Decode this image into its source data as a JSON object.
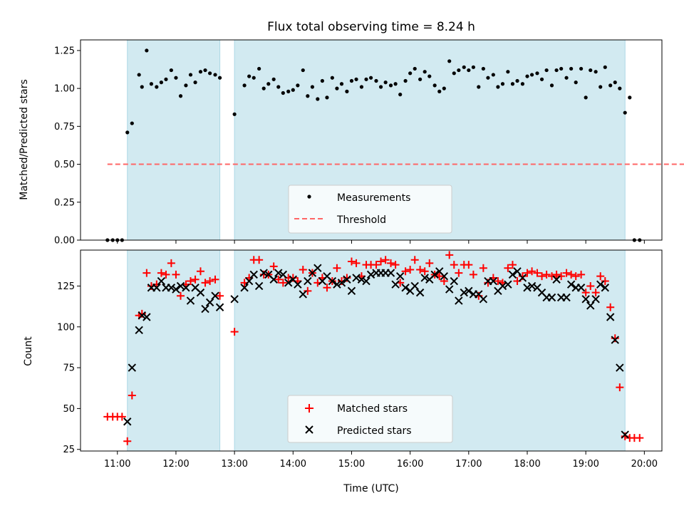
{
  "title": "Flux total observing time = 8.24 h",
  "colors": {
    "shade": "#add8e6",
    "measure": "#000000",
    "threshold": "#ff6666",
    "matched": "#ff0000",
    "predicted": "#000000"
  },
  "chart_data": [
    {
      "type": "scatter",
      "ylabel": "Matched/Predicted stars",
      "ylim": [
        0,
        1.32
      ],
      "yticks": [
        0.0,
        0.25,
        0.5,
        0.75,
        1.0,
        1.25
      ],
      "yticklabels": [
        "0.00",
        "0.25",
        "0.50",
        "0.75",
        "1.00",
        "1.25"
      ],
      "shaded_intervals": [
        [
          11.17,
          12.75
        ],
        [
          13.0,
          19.67
        ]
      ],
      "threshold": {
        "name": "Threshold",
        "value": 0.5,
        "x_range": [
          10.83,
          20.83
        ]
      },
      "legend": {
        "placement": "lower center",
        "entries": [
          "Measurements",
          "Threshold"
        ]
      },
      "series": [
        {
          "name": "Measurements",
          "x": [
            10.83,
            10.92,
            11.0,
            11.08,
            11.17,
            11.25,
            11.37,
            11.42,
            11.5,
            11.58,
            11.67,
            11.75,
            11.83,
            11.92,
            12.0,
            12.08,
            12.17,
            12.25,
            12.33,
            12.42,
            12.5,
            12.58,
            12.67,
            12.75,
            13.0,
            13.17,
            13.25,
            13.33,
            13.42,
            13.5,
            13.58,
            13.67,
            13.75,
            13.83,
            13.92,
            14.0,
            14.08,
            14.17,
            14.25,
            14.33,
            14.42,
            14.5,
            14.58,
            14.67,
            14.75,
            14.83,
            14.92,
            15.0,
            15.08,
            15.17,
            15.25,
            15.33,
            15.42,
            15.5,
            15.58,
            15.67,
            15.75,
            15.83,
            15.92,
            16.0,
            16.08,
            16.17,
            16.25,
            16.33,
            16.42,
            16.5,
            16.58,
            16.67,
            16.75,
            16.83,
            16.92,
            17.0,
            17.08,
            17.17,
            17.25,
            17.33,
            17.42,
            17.5,
            17.58,
            17.67,
            17.75,
            17.83,
            17.92,
            18.0,
            18.08,
            18.17,
            18.25,
            18.33,
            18.42,
            18.5,
            18.58,
            18.67,
            18.75,
            18.83,
            18.92,
            19.0,
            19.08,
            19.17,
            19.25,
            19.33,
            19.42,
            19.5,
            19.58,
            19.67,
            19.75,
            19.83,
            19.92
          ],
          "y": [
            0,
            0,
            0,
            0,
            0.71,
            0.77,
            1.09,
            1.01,
            1.25,
            1.03,
            1.01,
            1.04,
            1.06,
            1.12,
            1.07,
            0.95,
            1.02,
            1.09,
            1.04,
            1.11,
            1.12,
            1.1,
            1.09,
            1.07,
            0.83,
            1.02,
            1.08,
            1.07,
            1.13,
            1.0,
            1.03,
            1.06,
            1.01,
            0.97,
            0.98,
            0.99,
            1.02,
            1.12,
            0.95,
            1.01,
            0.93,
            1.05,
            0.94,
            1.07,
            1.0,
            1.03,
            0.98,
            1.05,
            1.06,
            1.01,
            1.06,
            1.07,
            1.05,
            1.01,
            1.04,
            1.02,
            1.03,
            0.96,
            1.05,
            1.1,
            1.13,
            1.06,
            1.11,
            1.08,
            1.02,
            0.98,
            1.0,
            1.18,
            1.1,
            1.12,
            1.14,
            1.12,
            1.14,
            1.01,
            1.13,
            1.07,
            1.09,
            1.01,
            1.03,
            1.11,
            1.03,
            1.05,
            1.03,
            1.08,
            1.09,
            1.1,
            1.06,
            1.12,
            1.02,
            1.12,
            1.13,
            1.07,
            1.13,
            1.04,
            1.13,
            0.94,
            1.12,
            1.11,
            1.01,
            1.14,
            1.02,
            1.04,
            1.0,
            0.84,
            0.94,
            0,
            0
          ]
        }
      ]
    },
    {
      "type": "scatter",
      "xlabel": "Time (UTC)",
      "ylabel": "Count",
      "xlim": [
        10.37,
        20.3
      ],
      "ylim": [
        24,
        147
      ],
      "yticks": [
        25,
        50,
        75,
        100,
        125
      ],
      "yticklabels": [
        "25",
        "50",
        "75",
        "100",
        "125"
      ],
      "xticks": [
        11,
        12,
        13,
        14,
        15,
        16,
        17,
        18,
        19,
        20
      ],
      "xticklabels": [
        "11:00",
        "12:00",
        "13:00",
        "14:00",
        "15:00",
        "16:00",
        "17:00",
        "18:00",
        "19:00",
        "20:00"
      ],
      "shaded_intervals": [
        [
          11.17,
          12.75
        ],
        [
          13.0,
          19.67
        ]
      ],
      "legend": {
        "placement": "lower center",
        "entries": [
          "Matched stars",
          "Predicted stars"
        ]
      },
      "series": [
        {
          "name": "Matched stars",
          "marker": "+",
          "x": [
            10.83,
            10.92,
            11.0,
            11.08,
            11.17,
            11.25,
            11.37,
            11.42,
            11.5,
            11.58,
            11.67,
            11.75,
            11.83,
            11.92,
            12.0,
            12.08,
            12.17,
            12.25,
            12.33,
            12.42,
            12.5,
            12.58,
            12.67,
            12.75,
            13.0,
            13.17,
            13.25,
            13.33,
            13.42,
            13.5,
            13.58,
            13.67,
            13.75,
            13.83,
            13.92,
            14.0,
            14.08,
            14.17,
            14.25,
            14.33,
            14.42,
            14.5,
            14.58,
            14.67,
            14.75,
            14.83,
            14.92,
            15.0,
            15.08,
            15.17,
            15.25,
            15.33,
            15.42,
            15.5,
            15.58,
            15.67,
            15.75,
            15.83,
            15.92,
            16.0,
            16.08,
            16.17,
            16.25,
            16.33,
            16.42,
            16.5,
            16.58,
            16.67,
            16.75,
            16.83,
            16.92,
            17.0,
            17.08,
            17.17,
            17.25,
            17.33,
            17.42,
            17.5,
            17.58,
            17.67,
            17.75,
            17.83,
            17.92,
            18.0,
            18.08,
            18.17,
            18.25,
            18.33,
            18.42,
            18.5,
            18.58,
            18.67,
            18.75,
            18.83,
            18.92,
            19.0,
            19.08,
            19.17,
            19.25,
            19.33,
            19.42,
            19.5,
            19.58,
            19.67,
            19.75,
            19.83,
            19.92
          ],
          "y": [
            45,
            45,
            45,
            45,
            30,
            58,
            107,
            108,
            133,
            125,
            126,
            133,
            132,
            139,
            132,
            119,
            126,
            128,
            129,
            134,
            127,
            128,
            129,
            119,
            97,
            127,
            130,
            141,
            141,
            132,
            132,
            137,
            129,
            127,
            130,
            130,
            128,
            135,
            122,
            133,
            127,
            130,
            124,
            128,
            136,
            128,
            130,
            140,
            139,
            131,
            138,
            138,
            138,
            140,
            141,
            139,
            138,
            127,
            134,
            135,
            141,
            135,
            134,
            139,
            132,
            131,
            128,
            144,
            138,
            133,
            138,
            138,
            132,
            119,
            136,
            127,
            130,
            128,
            127,
            136,
            138,
            128,
            131,
            133,
            134,
            133,
            131,
            132,
            131,
            132,
            131,
            133,
            132,
            131,
            132,
            121,
            125,
            121,
            131,
            128,
            112,
            93,
            63,
            33,
            32,
            32,
            32
          ]
        },
        {
          "name": "Predicted stars",
          "marker": "x",
          "x": [
            11.17,
            11.25,
            11.37,
            11.42,
            11.5,
            11.58,
            11.67,
            11.75,
            11.83,
            11.92,
            12.0,
            12.08,
            12.17,
            12.25,
            12.33,
            12.42,
            12.5,
            12.58,
            12.67,
            12.75,
            13.0,
            13.17,
            13.25,
            13.33,
            13.42,
            13.5,
            13.58,
            13.67,
            13.75,
            13.83,
            13.92,
            14.0,
            14.08,
            14.17,
            14.25,
            14.33,
            14.42,
            14.5,
            14.58,
            14.67,
            14.75,
            14.83,
            14.92,
            15.0,
            15.08,
            15.17,
            15.25,
            15.33,
            15.42,
            15.5,
            15.58,
            15.67,
            15.75,
            15.83,
            15.92,
            16.0,
            16.08,
            16.17,
            16.25,
            16.33,
            16.42,
            16.5,
            16.58,
            16.67,
            16.75,
            16.83,
            16.92,
            17.0,
            17.08,
            17.17,
            17.25,
            17.33,
            17.42,
            17.5,
            17.58,
            17.67,
            17.75,
            17.83,
            17.92,
            18.0,
            18.08,
            18.17,
            18.25,
            18.33,
            18.42,
            18.5,
            18.58,
            18.67,
            18.75,
            18.83,
            18.92,
            19.0,
            19.08,
            19.17,
            19.25,
            19.33,
            19.42,
            19.5,
            19.58,
            19.67
          ],
          "y": [
            42,
            75,
            98,
            107,
            106,
            124,
            124,
            128,
            124,
            124,
            123,
            125,
            124,
            116,
            124,
            121,
            111,
            115,
            119,
            112,
            117,
            124,
            128,
            132,
            125,
            133,
            132,
            129,
            133,
            132,
            127,
            129,
            126,
            120,
            128,
            133,
            136,
            128,
            131,
            128,
            126,
            127,
            129,
            122,
            130,
            129,
            128,
            132,
            133,
            133,
            133,
            133,
            126,
            131,
            124,
            122,
            125,
            121,
            130,
            129,
            132,
            134,
            131,
            123,
            128,
            116,
            121,
            122,
            120,
            120,
            117,
            128,
            128,
            122,
            125,
            126,
            132,
            134,
            130,
            124,
            125,
            124,
            121,
            118,
            118,
            129,
            118,
            118,
            126,
            124,
            124,
            117,
            113,
            117,
            126,
            124,
            106,
            92,
            75,
            34
          ]
        }
      ]
    }
  ]
}
